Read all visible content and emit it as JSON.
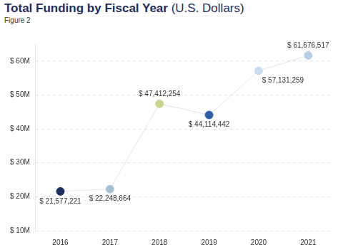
{
  "chart_data": {
    "type": "line",
    "title": "Total Funding by Fiscal Year (U.S. Dollars)",
    "subtitle": "Figure 2",
    "categories": [
      "2016",
      "2017",
      "2018",
      "2019",
      "2020",
      "2021"
    ],
    "values": [
      21577221,
      22248664,
      47412254,
      44114442,
      57131259,
      61676517
    ],
    "value_labels": [
      "$ 21,577,221",
      "$ 22,248,664",
      "$ 47,412,254",
      "$ 44,114,442",
      "$ 57,131,259",
      "$ 61,676,517"
    ],
    "colors": [
      "#1f2d5c",
      "#a9c2d3",
      "#c9d68c",
      "#2e5fa8",
      "#c9dcf0",
      "#b9cfe8"
    ],
    "ylim": [
      10000000,
      65000000
    ],
    "yticks": [
      {
        "value": 10000000,
        "label": "$ 10M"
      },
      {
        "value": 20000000,
        "label": "$ 20M"
      },
      {
        "value": 30000000,
        "label": "$ 30M"
      },
      {
        "value": 40000000,
        "label": "$ 40M"
      },
      {
        "value": 50000000,
        "label": "$ 50M"
      },
      {
        "value": 60000000,
        "label": "$ 60M"
      }
    ],
    "grid": true,
    "data_labels": true
  }
}
